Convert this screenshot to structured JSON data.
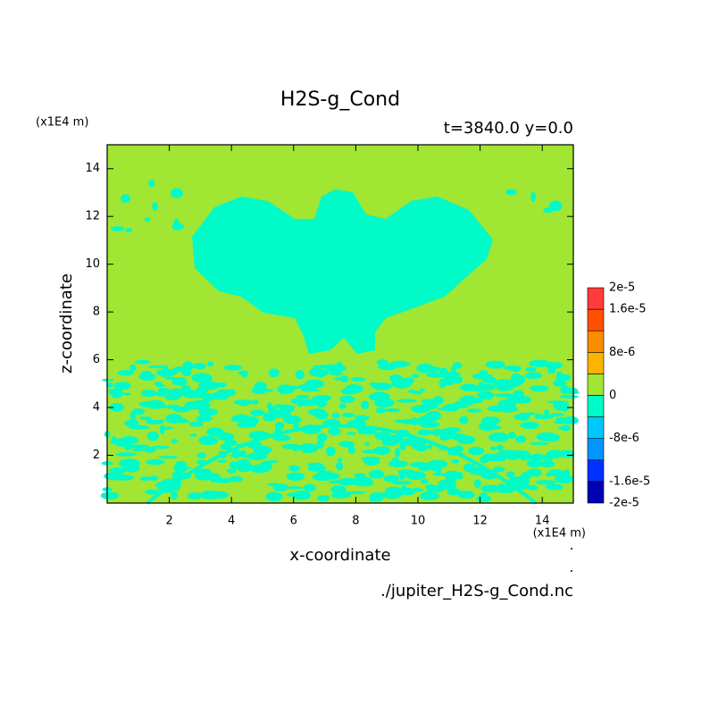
{
  "chart_data": {
    "type": "contour",
    "title": "H2S-g_Cond",
    "subtitle": "t=3840.0 y=0.0",
    "x_unit": "(x1E4 m)",
    "y_unit": "(x1E4 m)",
    "x_label": "x-coordinate",
    "y_label": "z-coordinate",
    "source": "./jupiter_H2S-g_Cond.nc",
    "xlim": [
      0,
      15
    ],
    "ylim": [
      0,
      15
    ],
    "xticks": [
      2,
      4,
      6,
      8,
      10,
      12,
      14
    ],
    "yticks": [
      2,
      4,
      6,
      8,
      10,
      12,
      14
    ],
    "levels": [
      -2e-05,
      -1.6e-05,
      -1.2e-05,
      -8e-06,
      -4e-06,
      0,
      4e-06,
      8e-06,
      1.2e-05,
      1.6e-05,
      2e-05
    ],
    "level_labels": [
      "-2e-5",
      "-1.6e-5",
      null,
      "-8e-6",
      null,
      "0",
      null,
      "8e-6",
      null,
      "1.6e-5",
      "2e-5"
    ],
    "level_colors": [
      "#0000b4",
      "#0032ff",
      "#0096ff",
      "#00c8ff",
      "#00fac8",
      "#a0e632",
      "#fab400",
      "#fa8c00",
      "#ff5000",
      "#ff3c3c"
    ]
  }
}
